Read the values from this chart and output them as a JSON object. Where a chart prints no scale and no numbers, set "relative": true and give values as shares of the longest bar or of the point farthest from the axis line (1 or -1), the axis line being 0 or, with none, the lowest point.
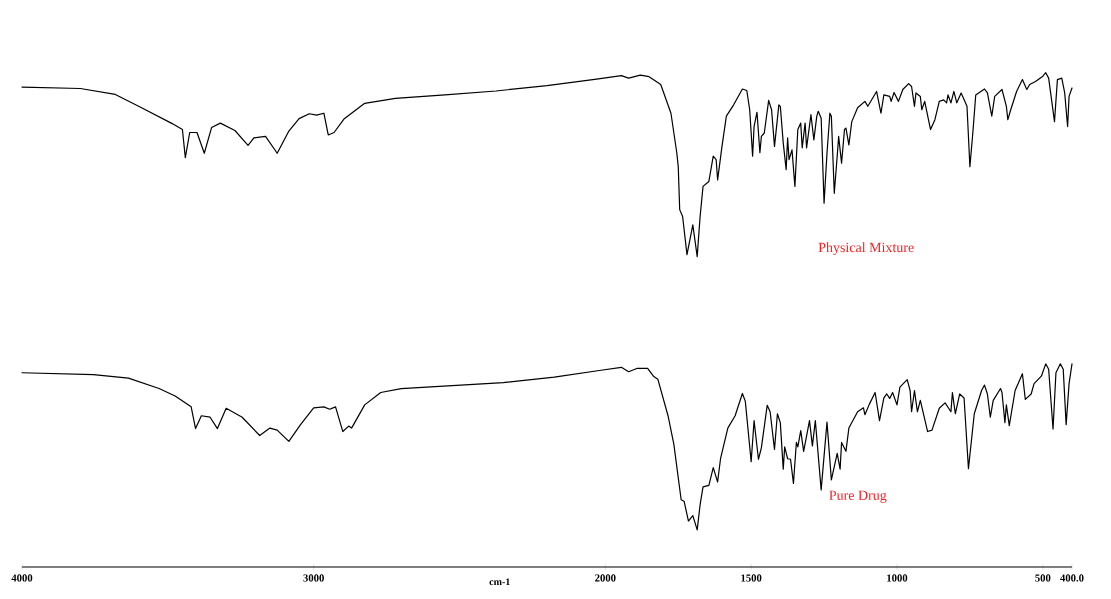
{
  "chart_data": {
    "type": "line",
    "relative": true,
    "xlabel": "cm-1",
    "xlim": [
      4000,
      400
    ],
    "xticks": [
      4000,
      3000,
      2000,
      1500,
      1000,
      500,
      {
        "value": 400,
        "label": "400.0"
      }
    ],
    "series": [
      {
        "name": "Physical Mixture",
        "color": "#000000",
        "x": [
          4000,
          3800,
          3680,
          3590,
          3485,
          3450,
          3440,
          3425,
          3400,
          3375,
          3350,
          3320,
          3270,
          3225,
          3205,
          3165,
          3125,
          3085,
          3050,
          3015,
          2990,
          2965,
          2950,
          2930,
          2895,
          2825,
          2720,
          2550,
          2375,
          2200,
          2030,
          1945,
          1920,
          1880,
          1850,
          1810,
          1775,
          1755,
          1750,
          1745,
          1735,
          1720,
          1700,
          1685,
          1675,
          1665,
          1645,
          1630,
          1620,
          1615,
          1600,
          1585,
          1560,
          1530,
          1515,
          1505,
          1495,
          1490,
          1480,
          1470,
          1465,
          1455,
          1440,
          1430,
          1420,
          1405,
          1400,
          1390,
          1380,
          1375,
          1370,
          1360,
          1350,
          1340,
          1330,
          1325,
          1315,
          1310,
          1295,
          1285,
          1275,
          1270,
          1260,
          1250,
          1240,
          1230,
          1225,
          1215,
          1205,
          1200,
          1190,
          1180,
          1175,
          1165,
          1155,
          1135,
          1110,
          1100,
          1070,
          1055,
          1045,
          1025,
          1020,
          1010,
          995,
          980,
          960,
          950,
          940,
          935,
          920,
          915,
          905,
          885,
          870,
          855,
          840,
          830,
          825,
          815,
          805,
          795,
          780,
          760,
          750,
          740,
          730,
          700,
          690,
          675,
          665,
          640,
          625,
          620,
          610,
          590,
          570,
          555,
          545,
          525,
          500,
          490,
          480,
          470,
          460,
          450,
          435,
          425,
          415,
          410,
          400
        ],
        "values": [
          0.971,
          0.968,
          0.956,
          0.929,
          0.897,
          0.885,
          0.828,
          0.879,
          0.879,
          0.837,
          0.889,
          0.898,
          0.883,
          0.853,
          0.868,
          0.871,
          0.837,
          0.882,
          0.907,
          0.917,
          0.914,
          0.918,
          0.874,
          0.879,
          0.907,
          0.938,
          0.948,
          0.955,
          0.963,
          0.974,
          0.987,
          0.994,
          0.989,
          0.995,
          0.992,
          0.976,
          0.918,
          0.838,
          0.81,
          0.723,
          0.709,
          0.632,
          0.692,
          0.628,
          0.709,
          0.77,
          0.78,
          0.831,
          0.824,
          0.783,
          0.851,
          0.912,
          0.935,
          0.967,
          0.964,
          0.925,
          0.831,
          0.891,
          0.92,
          0.838,
          0.871,
          0.878,
          0.944,
          0.925,
          0.851,
          0.935,
          0.932,
          0.858,
          0.804,
          0.868,
          0.824,
          0.844,
          0.77,
          0.885,
          0.898,
          0.848,
          0.898,
          0.848,
          0.915,
          0.864,
          0.912,
          0.922,
          0.908,
          0.736,
          0.837,
          0.918,
          0.912,
          0.756,
          0.831,
          0.871,
          0.817,
          0.885,
          0.888,
          0.854,
          0.901,
          0.929,
          0.942,
          0.932,
          0.962,
          0.918,
          0.955,
          0.952,
          0.942,
          0.96,
          0.942,
          0.966,
          0.978,
          0.972,
          0.932,
          0.959,
          0.952,
          0.925,
          0.942,
          0.885,
          0.905,
          0.942,
          0.945,
          0.939,
          0.955,
          0.939,
          0.962,
          0.939,
          0.959,
          0.932,
          0.81,
          0.878,
          0.955,
          0.967,
          0.959,
          0.912,
          0.952,
          0.966,
          0.932,
          0.905,
          0.925,
          0.962,
          0.986,
          0.966,
          0.976,
          0.982,
          0.993,
          1,
          0.989,
          0.945,
          0.901,
          0.986,
          0.989,
          0.959,
          0.891,
          0.952,
          0.969
        ]
      },
      {
        "name": "Pure Drug",
        "color": "#000000",
        "x": [
          4000,
          3755,
          3635,
          3530,
          3475,
          3420,
          3405,
          3385,
          3355,
          3330,
          3300,
          3245,
          3185,
          3150,
          3125,
          3085,
          3045,
          3000,
          2965,
          2945,
          2925,
          2900,
          2880,
          2870,
          2825,
          2770,
          2700,
          2350,
          2175,
          2015,
          1945,
          1920,
          1890,
          1855,
          1835,
          1820,
          1785,
          1765,
          1740,
          1730,
          1715,
          1700,
          1685,
          1675,
          1665,
          1645,
          1630,
          1615,
          1605,
          1580,
          1555,
          1530,
          1520,
          1500,
          1490,
          1475,
          1465,
          1445,
          1435,
          1420,
          1410,
          1400,
          1390,
          1385,
          1375,
          1365,
          1355,
          1345,
          1340,
          1330,
          1320,
          1300,
          1290,
          1280,
          1260,
          1240,
          1225,
          1205,
          1195,
          1190,
          1175,
          1165,
          1135,
          1115,
          1110,
          1095,
          1075,
          1060,
          1045,
          1035,
          1025,
          1015,
          1000,
          990,
          965,
          955,
          950,
          940,
          935,
          930,
          920,
          895,
          880,
          855,
          835,
          815,
          810,
          800,
          785,
          770,
          755,
          735,
          710,
          700,
          690,
          680,
          670,
          645,
          640,
          630,
          625,
          615,
          595,
          570,
          560,
          540,
          530,
          505,
          490,
          480,
          465,
          455,
          440,
          430,
          420,
          410,
          400
        ],
        "values": [
          0.393,
          0.389,
          0.382,
          0.361,
          0.346,
          0.324,
          0.28,
          0.306,
          0.303,
          0.28,
          0.321,
          0.303,
          0.266,
          0.281,
          0.277,
          0.254,
          0.288,
          0.322,
          0.324,
          0.319,
          0.324,
          0.274,
          0.285,
          0.281,
          0.328,
          0.353,
          0.361,
          0.373,
          0.384,
          0.398,
          0.404,
          0.395,
          0.402,
          0.402,
          0.386,
          0.38,
          0.306,
          0.248,
          0.136,
          0.133,
          0.093,
          0.104,
          0.075,
          0.126,
          0.162,
          0.165,
          0.201,
          0.172,
          0.219,
          0.281,
          0.306,
          0.351,
          0.335,
          0.213,
          0.296,
          0.218,
          0.241,
          0.327,
          0.314,
          0.238,
          0.31,
          0.292,
          0.198,
          0.243,
          0.219,
          0.218,
          0.169,
          0.252,
          0.243,
          0.276,
          0.234,
          0.296,
          0.245,
          0.296,
          0.156,
          0.293,
          0.176,
          0.23,
          0.198,
          0.252,
          0.234,
          0.281,
          0.314,
          0.322,
          0.308,
          0.329,
          0.353,
          0.296,
          0.342,
          0.35,
          0.341,
          0.353,
          0.328,
          0.364,
          0.379,
          0.357,
          0.314,
          0.357,
          0.335,
          0.314,
          0.337,
          0.274,
          0.277,
          0.321,
          0.332,
          0.314,
          0.353,
          0.31,
          0.35,
          0.342,
          0.199,
          0.31,
          0.357,
          0.368,
          0.35,
          0.303,
          0.337,
          0.361,
          0.353,
          0.292,
          0.328,
          0.286,
          0.357,
          0.391,
          0.339,
          0.35,
          0.371,
          0.386,
          0.411,
          0.4,
          0.279,
          0.393,
          0.411,
          0.4,
          0.288,
          0.371,
          0.411
        ]
      }
    ]
  }
}
